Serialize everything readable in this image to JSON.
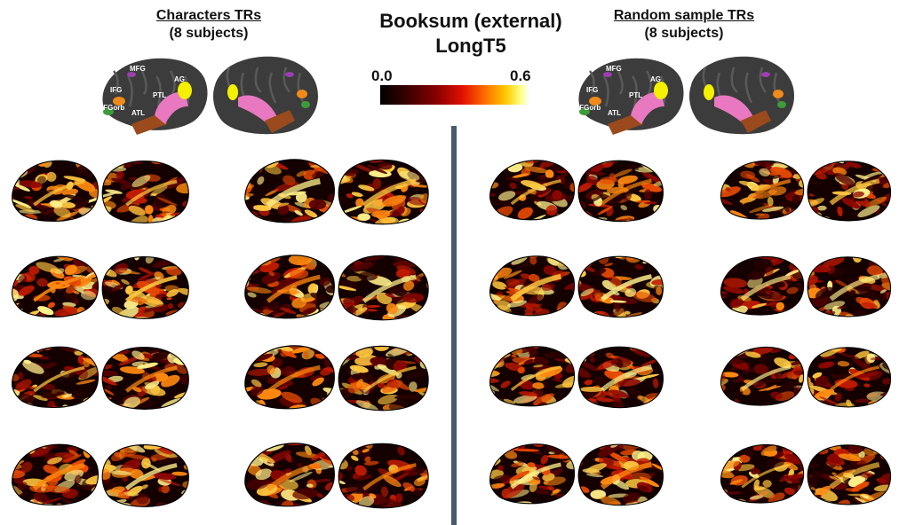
{
  "main_title": {
    "line1": "Booksum (external)",
    "line2": "LongT5"
  },
  "colorbar": {
    "min_label": "0.0",
    "max_label": "0.6"
  },
  "left_panel": {
    "title": "Characters TRs",
    "subtitle": "(8 subjects)"
  },
  "right_panel": {
    "title": "Random sample TRs",
    "subtitle": "(8 subjects)"
  },
  "roi_labels": {
    "mfg": "MFG",
    "ifg": "IFG",
    "ifgorb": "IFGorb",
    "atl": "ATL",
    "ptl": "PTL",
    "ag": "AG"
  },
  "colors": {
    "cortex": "#3c3c3c",
    "cortex_sulci": "#595959",
    "roi_mfg": "#9b3fb0",
    "roi_ifg": "#f08a1a",
    "roi_ifgorb": "#3f9a3a",
    "roi_atl": "#9a4a1c",
    "roi_ptl": "#e878c0",
    "roi_ag": "#f4f000",
    "divider": "#4a5870"
  },
  "brain_grid": {
    "rows": 4,
    "columns_per_side": 2
  }
}
